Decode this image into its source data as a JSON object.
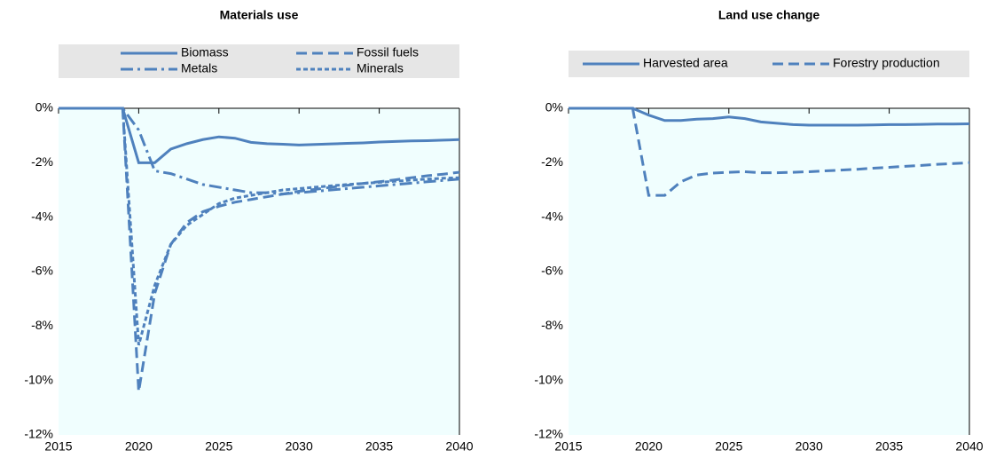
{
  "chart_data": [
    {
      "type": "line",
      "title": "Materials use",
      "legend": "top",
      "x": [
        2015,
        2016,
        2017,
        2018,
        2019,
        2020,
        2021,
        2022,
        2023,
        2024,
        2025,
        2026,
        2027,
        2028,
        2029,
        2030,
        2031,
        2032,
        2033,
        2034,
        2035,
        2036,
        2037,
        2038,
        2039,
        2040
      ],
      "xlim": [
        2015,
        2040
      ],
      "xticks": [
        2015,
        2020,
        2025,
        2030,
        2035,
        2040
      ],
      "ylim": [
        -12,
        0
      ],
      "yticks": [
        {
          "value": 0,
          "label": "0%"
        },
        {
          "value": -2,
          "label": "-2%"
        },
        {
          "value": -4,
          "label": "-4%"
        },
        {
          "value": -6,
          "label": "-6%"
        },
        {
          "value": -8,
          "label": "-8%"
        },
        {
          "value": -10,
          "label": "-10%"
        },
        {
          "value": -12,
          "label": "-12%"
        }
      ],
      "series": [
        {
          "name": "Biomass",
          "color": "#4f81bd",
          "dash": "solid",
          "values": [
            0,
            0,
            0,
            0,
            0,
            -2.0,
            -2.0,
            -1.5,
            -1.3,
            -1.15,
            -1.05,
            -1.1,
            -1.25,
            -1.3,
            -1.32,
            -1.35,
            -1.33,
            -1.31,
            -1.29,
            -1.27,
            -1.24,
            -1.22,
            -1.2,
            -1.19,
            -1.17,
            -1.15
          ]
        },
        {
          "name": "Fossil fuels",
          "color": "#4f81bd",
          "dash": "dash",
          "values": [
            0,
            0,
            0,
            0,
            0,
            -10.4,
            -6.8,
            -5.0,
            -4.2,
            -3.8,
            -3.6,
            -3.45,
            -3.35,
            -3.25,
            -3.15,
            -3.05,
            -2.98,
            -2.9,
            -2.83,
            -2.76,
            -2.7,
            -2.63,
            -2.55,
            -2.48,
            -2.42,
            -2.35
          ]
        },
        {
          "name": "Metals",
          "color": "#4f81bd",
          "dash": "dashdot",
          "values": [
            0,
            0,
            0,
            0,
            0,
            -0.8,
            -2.3,
            -2.4,
            -2.6,
            -2.8,
            -2.9,
            -3.0,
            -3.1,
            -3.1,
            -3.15,
            -3.1,
            -3.05,
            -3.0,
            -2.95,
            -2.9,
            -2.85,
            -2.8,
            -2.75,
            -2.7,
            -2.65,
            -2.6
          ]
        },
        {
          "name": "Minerals",
          "color": "#4f81bd",
          "dash": "dot",
          "values": [
            0,
            0,
            0,
            0,
            0,
            -8.7,
            -6.5,
            -5.0,
            -4.3,
            -3.9,
            -3.5,
            -3.3,
            -3.2,
            -3.1,
            -3.0,
            -2.95,
            -2.9,
            -2.85,
            -2.8,
            -2.76,
            -2.72,
            -2.68,
            -2.64,
            -2.6,
            -2.57,
            -2.55
          ]
        }
      ]
    },
    {
      "type": "line",
      "title": "Land use change",
      "legend": "top",
      "x": [
        2015,
        2016,
        2017,
        2018,
        2019,
        2020,
        2021,
        2022,
        2023,
        2024,
        2025,
        2026,
        2027,
        2028,
        2029,
        2030,
        2031,
        2032,
        2033,
        2034,
        2035,
        2036,
        2037,
        2038,
        2039,
        2040
      ],
      "xlim": [
        2015,
        2040
      ],
      "xticks": [
        2015,
        2020,
        2025,
        2030,
        2035,
        2040
      ],
      "ylim": [
        -12,
        0
      ],
      "yticks": [
        {
          "value": 0,
          "label": "0%"
        },
        {
          "value": -2,
          "label": "-2%"
        },
        {
          "value": -4,
          "label": "-4%"
        },
        {
          "value": -6,
          "label": "-6%"
        },
        {
          "value": -8,
          "label": "-8%"
        },
        {
          "value": -10,
          "label": "-10%"
        },
        {
          "value": -12,
          "label": "-12%"
        }
      ],
      "series": [
        {
          "name": "Harvested area",
          "color": "#4f81bd",
          "dash": "solid",
          "values": [
            0,
            0,
            0,
            0,
            0,
            -0.25,
            -0.45,
            -0.45,
            -0.4,
            -0.38,
            -0.32,
            -0.38,
            -0.5,
            -0.55,
            -0.6,
            -0.62,
            -0.62,
            -0.62,
            -0.62,
            -0.61,
            -0.6,
            -0.6,
            -0.59,
            -0.58,
            -0.58,
            -0.57
          ]
        },
        {
          "name": "Forestry production",
          "color": "#4f81bd",
          "dash": "dash",
          "values": [
            0,
            0,
            0,
            0,
            0,
            -3.2,
            -3.2,
            -2.7,
            -2.45,
            -2.38,
            -2.35,
            -2.33,
            -2.37,
            -2.37,
            -2.35,
            -2.33,
            -2.3,
            -2.27,
            -2.24,
            -2.2,
            -2.17,
            -2.13,
            -2.1,
            -2.06,
            -2.03,
            -2.0
          ]
        }
      ]
    }
  ]
}
